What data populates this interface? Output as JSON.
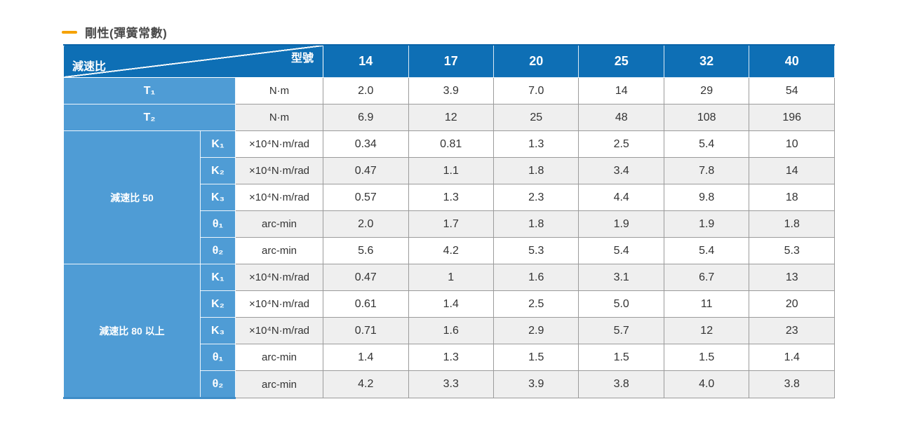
{
  "title": {
    "text": "剛性(彈簧常數)"
  },
  "colors": {
    "accent_orange": "#F5A200",
    "header_blue": "#0E6FB5",
    "label_blue": "#4F9CD5",
    "row_alt_gray": "#EFEFEF",
    "border_gray": "#9B9B9B"
  },
  "table": {
    "corner": {
      "top_right": "型號",
      "bottom_left": "減速比"
    },
    "models": [
      "14",
      "17",
      "20",
      "25",
      "32",
      "40"
    ],
    "row_groups": [
      {
        "label": null,
        "rows": [
          {
            "label": "T₁",
            "unit": "N·m",
            "values": [
              "2.0",
              "3.9",
              "7.0",
              "14",
              "29",
              "54"
            ]
          },
          {
            "label": "T₂",
            "unit": "N·m",
            "values": [
              "6.9",
              "12",
              "25",
              "48",
              "108",
              "196"
            ]
          }
        ]
      },
      {
        "label": "減速比 50",
        "rows": [
          {
            "label": "K₁",
            "unit": "×10⁴N·m/rad",
            "values": [
              "0.34",
              "0.81",
              "1.3",
              "2.5",
              "5.4",
              "10"
            ]
          },
          {
            "label": "K₂",
            "unit": "×10⁴N·m/rad",
            "values": [
              "0.47",
              "1.1",
              "1.8",
              "3.4",
              "7.8",
              "14"
            ]
          },
          {
            "label": "K₃",
            "unit": "×10⁴N·m/rad",
            "values": [
              "0.57",
              "1.3",
              "2.3",
              "4.4",
              "9.8",
              "18"
            ]
          },
          {
            "label": "θ₁",
            "unit": "arc-min",
            "values": [
              "2.0",
              "1.7",
              "1.8",
              "1.9",
              "1.9",
              "1.8"
            ]
          },
          {
            "label": "θ₂",
            "unit": "arc-min",
            "values": [
              "5.6",
              "4.2",
              "5.3",
              "5.4",
              "5.4",
              "5.3"
            ]
          }
        ]
      },
      {
        "label": "減速比 80 以上",
        "rows": [
          {
            "label": "K₁",
            "unit": "×10⁴N·m/rad",
            "values": [
              "0.47",
              "1",
              "1.6",
              "3.1",
              "6.7",
              "13"
            ]
          },
          {
            "label": "K₂",
            "unit": "×10⁴N·m/rad",
            "values": [
              "0.61",
              "1.4",
              "2.5",
              "5.0",
              "11",
              "20"
            ]
          },
          {
            "label": "K₃",
            "unit": "×10⁴N·m/rad",
            "values": [
              "0.71",
              "1.6",
              "2.9",
              "5.7",
              "12",
              "23"
            ]
          },
          {
            "label": "θ₁",
            "unit": "arc-min",
            "values": [
              "1.4",
              "1.3",
              "1.5",
              "1.5",
              "1.5",
              "1.4"
            ]
          },
          {
            "label": "θ₂",
            "unit": "arc-min",
            "values": [
              "4.2",
              "3.3",
              "3.9",
              "3.8",
              "4.0",
              "3.8"
            ]
          }
        ]
      }
    ]
  }
}
